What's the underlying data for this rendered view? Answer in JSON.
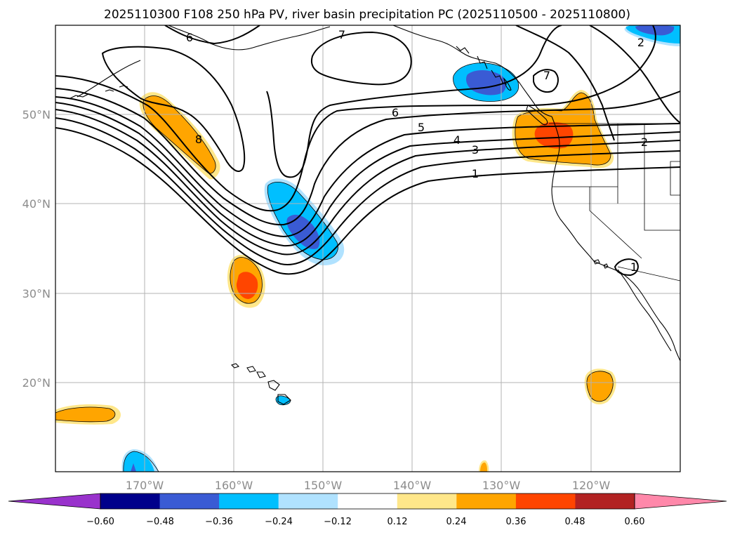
{
  "title": "2025110300 F108 250 hPa PV, river basin precipitation PC (2025110500 - 2025110800)",
  "map": {
    "lon_range": [
      -180,
      -110
    ],
    "lat_range": [
      10,
      60
    ],
    "lat_ticks": [
      {
        "value": 50,
        "label": "50°N"
      },
      {
        "value": 40,
        "label": "40°N"
      },
      {
        "value": 30,
        "label": "30°N"
      },
      {
        "value": 20,
        "label": "20°N"
      }
    ],
    "lon_ticks": [
      {
        "value": -170,
        "label": "170°W"
      },
      {
        "value": -160,
        "label": "160°W"
      },
      {
        "value": -150,
        "label": "150°W"
      },
      {
        "value": -140,
        "label": "140°W"
      },
      {
        "value": -130,
        "label": "130°W"
      },
      {
        "value": -120,
        "label": "120°W"
      }
    ]
  },
  "pv_contour_labels": [
    {
      "text": "6",
      "lon": -165.1,
      "lat": 58.1
    },
    {
      "text": "7",
      "lon": -148.3,
      "lat": 58.3
    },
    {
      "text": "7",
      "lon": -124.7,
      "lat": 54.3
    },
    {
      "text": "2",
      "lon": -115.9,
      "lat": 58.0
    },
    {
      "text": "6",
      "lon": -138.2,
      "lat": 50.1
    },
    {
      "text": "5",
      "lon": -136.1,
      "lat": 48.5
    },
    {
      "text": "4",
      "lon": -134.2,
      "lat": 47.1
    },
    {
      "text": "3",
      "lon": -133.0,
      "lat": 46.2
    },
    {
      "text": "1",
      "lon": -133.0,
      "lat": 43.2
    },
    {
      "text": "2",
      "lon": -115.6,
      "lat": 46.8
    },
    {
      "text": "8",
      "lon": -163.8,
      "lat": 47.3
    },
    {
      "text": "1",
      "lon": -114.8,
      "lat": 32.3
    }
  ],
  "colorbar": {
    "levels": [
      "−0.60",
      "−0.48",
      "−0.36",
      "−0.24",
      "−0.12",
      "0.12",
      "0.24",
      "0.36",
      "0.48",
      "0.60"
    ],
    "colors": [
      "#9932cc",
      "#00008b",
      "#3a5bd4",
      "#00bfff",
      "#b0e2ff",
      "#ffffff",
      "#ffe78a",
      "#ffa500",
      "#ff4500",
      "#b22222",
      "#ff88aa"
    ]
  }
}
